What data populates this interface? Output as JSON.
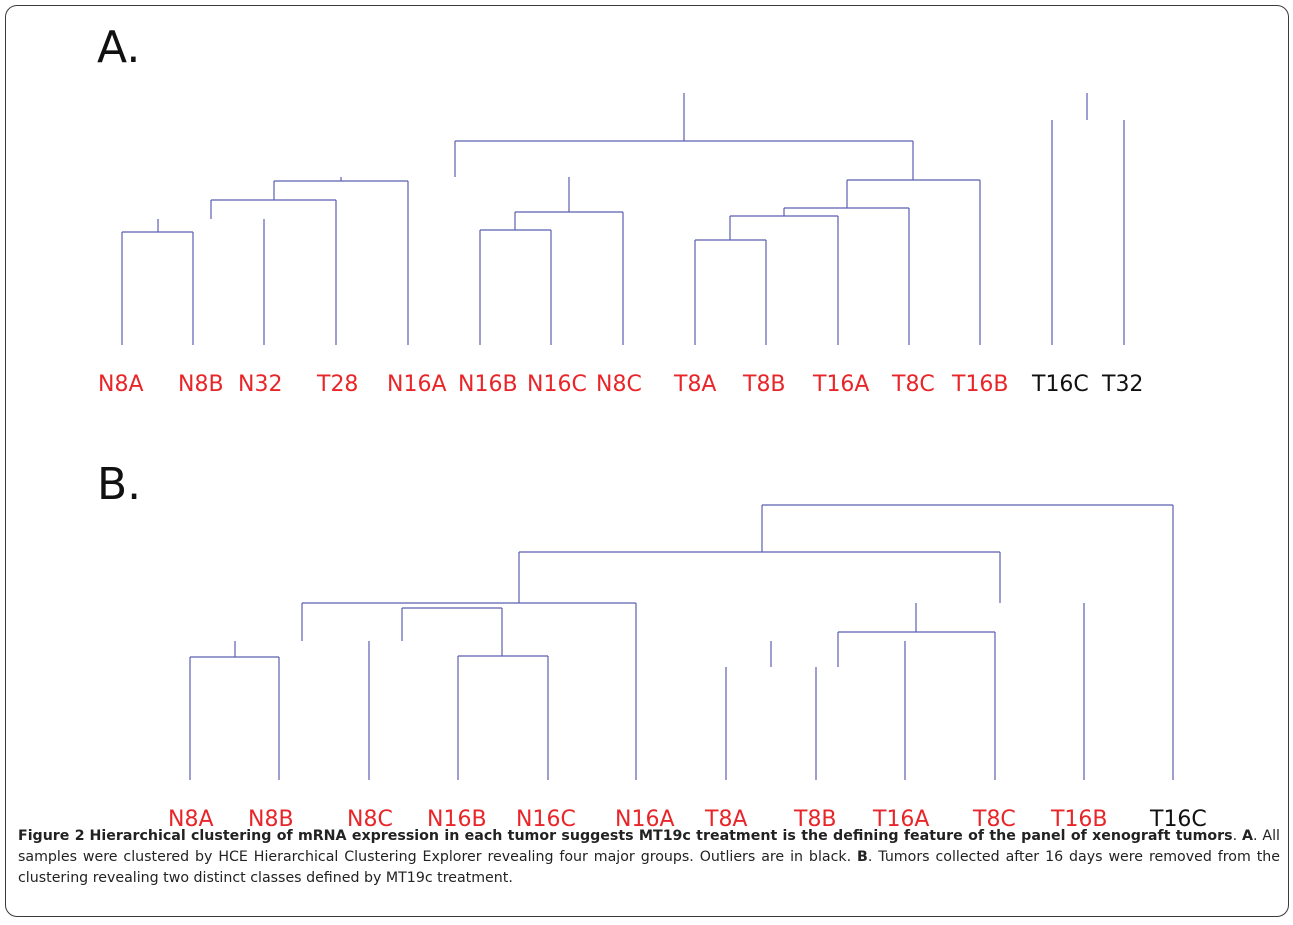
{
  "panels": [
    {
      "label": "A.",
      "leaves": [
        {
          "text": "N8A",
          "color": "#e8262a"
        },
        {
          "text": "N8B",
          "color": "#e8262a"
        },
        {
          "text": "N32",
          "color": "#e8262a"
        },
        {
          "text": "T28",
          "color": "#e8262a"
        },
        {
          "text": "N16A",
          "color": "#e8262a"
        },
        {
          "text": "N16B",
          "color": "#e8262a"
        },
        {
          "text": "N16C",
          "color": "#e8262a"
        },
        {
          "text": "N8C",
          "color": "#e8262a"
        },
        {
          "text": "T8A",
          "color": "#e8262a"
        },
        {
          "text": "T8B",
          "color": "#e8262a"
        },
        {
          "text": "T16A",
          "color": "#e8262a"
        },
        {
          "text": "T8C",
          "color": "#e8262a"
        },
        {
          "text": "T16B",
          "color": "#e8262a"
        },
        {
          "text": "T16C",
          "color": "#111111"
        },
        {
          "text": "T32",
          "color": "#111111"
        }
      ]
    },
    {
      "label": "B.",
      "leaves": [
        {
          "text": "N8A",
          "color": "#e8262a"
        },
        {
          "text": "N8B",
          "color": "#e8262a"
        },
        {
          "text": "N8C",
          "color": "#e8262a"
        },
        {
          "text": "N16B",
          "color": "#e8262a"
        },
        {
          "text": "N16C",
          "color": "#e8262a"
        },
        {
          "text": "N16A",
          "color": "#e8262a"
        },
        {
          "text": "T8A",
          "color": "#e8262a"
        },
        {
          "text": "T8B",
          "color": "#e8262a"
        },
        {
          "text": "T16A",
          "color": "#e8262a"
        },
        {
          "text": "T8C",
          "color": "#e8262a"
        },
        {
          "text": "T16B",
          "color": "#e8262a"
        },
        {
          "text": "T16C",
          "color": "#111111"
        }
      ]
    }
  ],
  "dendrogram_color": "#5a5fb0",
  "caption": {
    "figure_label": "Figure 2",
    "title": "Hierarchical clustering of mRNA expression in each tumor suggests MT19c treatment is the defining feature of the panel of xenograft tumors",
    "part_a_label": "A",
    "part_a_text": ". All samples were clustered by HCE Hierarchical Clustering Explorer revealing four major groups. Outliers are in black.",
    "part_b_label": "B",
    "part_b_text": ". Tumors collected after 16 days were removed from the clustering revealing two distinct classes defined by MT19c treatment."
  }
}
